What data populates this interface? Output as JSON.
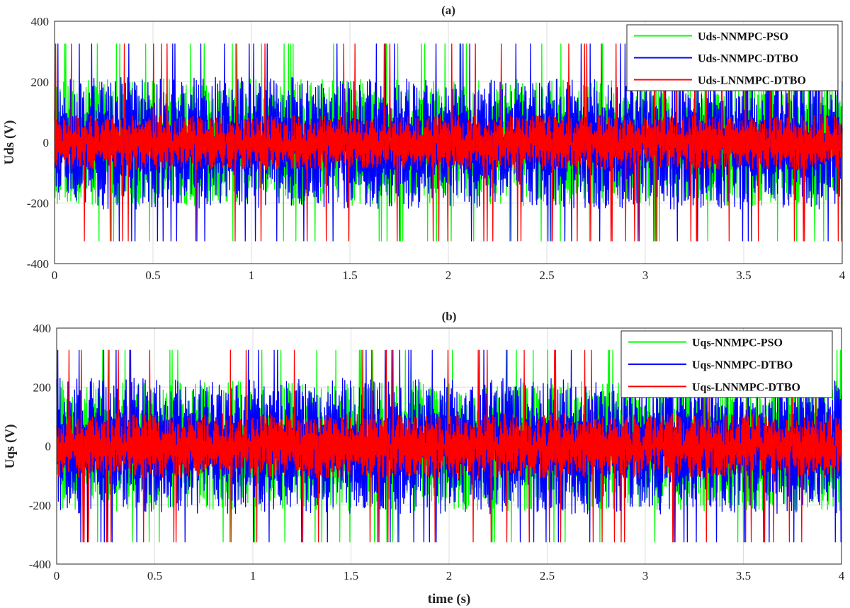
{
  "figure": {
    "xlabel": "time (s)"
  },
  "chart_data": [
    {
      "type": "line",
      "panel": "a",
      "title": "(a)",
      "xlabel": "",
      "ylabel": "Uds (V)",
      "xlim": [
        0,
        4
      ],
      "ylim": [
        -400,
        400
      ],
      "xticks": [
        0,
        0.5,
        1,
        1.5,
        2,
        2.5,
        3,
        3.5,
        4
      ],
      "xtick_labels": [
        "0",
        "0.5",
        "1",
        "1.5",
        "2",
        "2.5",
        "3",
        "3.5",
        "4"
      ],
      "yticks": [
        400,
        200,
        0,
        -200,
        -400
      ],
      "ytick_labels": [
        "400",
        "200",
        "0",
        "-200",
        "-400"
      ],
      "grid": true,
      "legend_position": "top-right",
      "series": [
        {
          "name": "Uds-NNMPC-PSO",
          "color": "#00ff00",
          "t_range": [
            0,
            4
          ],
          "mean": 0,
          "envelope": [
            -325,
            325
          ],
          "typical_band": [
            -210,
            210
          ]
        },
        {
          "name": "Uds-NNMPC-DTBO",
          "color": "#0000ff",
          "t_range": [
            0,
            4
          ],
          "mean": 0,
          "envelope": [
            -325,
            325
          ],
          "typical_band": [
            -220,
            215
          ]
        },
        {
          "name": "Uds-LNNMPC-DTBO",
          "color": "#ff0000",
          "t_range": [
            0,
            4
          ],
          "mean": 0,
          "envelope": [
            -325,
            325
          ],
          "typical_band": [
            -90,
            90
          ]
        }
      ]
    },
    {
      "type": "line",
      "panel": "b",
      "title": "(b)",
      "xlabel": "time (s)",
      "ylabel": "Uqs (V)",
      "xlim": [
        0,
        4
      ],
      "ylim": [
        -400,
        400
      ],
      "xticks": [
        0,
        0.5,
        1,
        1.5,
        2,
        2.5,
        3,
        3.5,
        4
      ],
      "xtick_labels": [
        "0",
        "0.5",
        "1",
        "1.5",
        "2",
        "2.5",
        "3",
        "3.5",
        "4"
      ],
      "yticks": [
        400,
        200,
        0,
        -200,
        -400
      ],
      "ytick_labels": [
        "400",
        "200",
        "0",
        "-200",
        "-400"
      ],
      "grid": true,
      "legend_position": "top-right",
      "series": [
        {
          "name": "Uqs-NNMPC-PSO",
          "color": "#00ff00",
          "t_range": [
            0,
            4
          ],
          "mean": 0,
          "envelope": [
            -325,
            325
          ],
          "typical_band": [
            -220,
            220
          ]
        },
        {
          "name": "Uqs-NNMPC-DTBO",
          "color": "#0000ff",
          "t_range": [
            0,
            4
          ],
          "mean": 0,
          "envelope": [
            -325,
            325
          ],
          "typical_band": [
            -230,
            230
          ]
        },
        {
          "name": "Uqs-LNNMPC-DTBO",
          "color": "#ff0000",
          "t_range": [
            0,
            4
          ],
          "mean": 0,
          "envelope": [
            -325,
            325
          ],
          "typical_band": [
            -110,
            110
          ]
        }
      ]
    }
  ]
}
